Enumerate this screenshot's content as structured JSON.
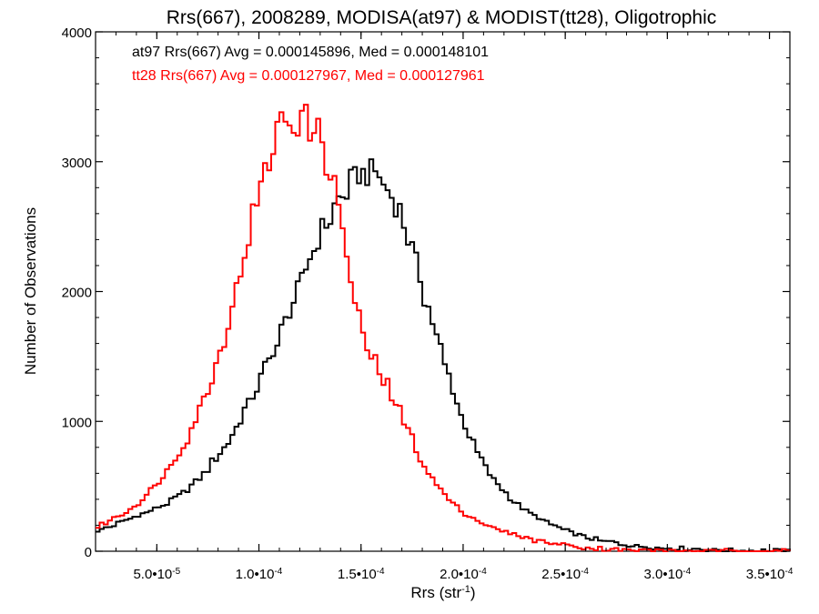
{
  "chart_data": {
    "type": "histogram",
    "title": "Rrs(667), 2008289, MODISA(at97) & MODIST(tt28), Oligotrophic",
    "xlabel": {
      "main": "Rrs (str",
      "sup": "-1",
      "close": ")"
    },
    "ylabel": "Number of Observations",
    "xlim": [
      2e-05,
      0.00036
    ],
    "ylim": [
      0,
      4000
    ],
    "x_ticks": [
      {
        "value": 5e-05,
        "mantissa": "5.0",
        "exponent": "-5"
      },
      {
        "value": 0.0001,
        "mantissa": "1.0",
        "exponent": "-4"
      },
      {
        "value": 0.00015,
        "mantissa": "1.5",
        "exponent": "-4"
      },
      {
        "value": 0.0002,
        "mantissa": "2.0",
        "exponent": "-4"
      },
      {
        "value": 0.00025,
        "mantissa": "2.5",
        "exponent": "-4"
      },
      {
        "value": 0.0003,
        "mantissa": "3.0",
        "exponent": "-4"
      },
      {
        "value": 0.00035,
        "mantissa": "3.5",
        "exponent": "-4"
      }
    ],
    "y_ticks": [
      0,
      1000,
      2000,
      3000,
      4000
    ],
    "grid": false,
    "annotations": [
      {
        "text": "at97 Rrs(667) Avg = 0.000145896, Med = 0.000148101",
        "color": "#000000"
      },
      {
        "text": "tt28 Rrs(667) Avg = 0.000127967, Med = 0.000127961",
        "color": "#ff0000"
      }
    ],
    "series": [
      {
        "color": "#000000",
        "bin_width": 2e-06,
        "x": [
          2e-05,
          2.5e-05,
          3e-05,
          3.5e-05,
          4e-05,
          4.5e-05,
          5e-05,
          5.5e-05,
          6e-05,
          6.5e-05,
          7e-05,
          7.5e-05,
          8e-05,
          8.5e-05,
          9e-05,
          9.5e-05,
          0.0001,
          0.000105,
          0.00011,
          0.000115,
          0.00012,
          0.000125,
          0.00013,
          0.000135,
          0.00014,
          0.000145,
          0.00015,
          0.000152,
          0.000155,
          0.000158,
          0.00016,
          0.000165,
          0.00017,
          0.000175,
          0.00018,
          0.000185,
          0.00019,
          0.000195,
          0.0002,
          0.000205,
          0.00021,
          0.000215,
          0.00022,
          0.000225,
          0.00023,
          0.00024,
          0.00025,
          0.00026,
          0.00027,
          0.00028,
          0.00029,
          0.0003,
          0.00031,
          0.00032,
          0.00033,
          0.00034,
          0.00035,
          0.00036
        ],
        "y": [
          150,
          180,
          210,
          240,
          270,
          300,
          330,
          370,
          420,
          480,
          550,
          640,
          740,
          850,
          990,
          1130,
          1290,
          1460,
          1650,
          1850,
          2060,
          2250,
          2430,
          2600,
          2750,
          2860,
          2920,
          2960,
          2900,
          2870,
          2840,
          2720,
          2550,
          2320,
          2050,
          1760,
          1490,
          1240,
          1000,
          820,
          670,
          550,
          460,
          380,
          320,
          230,
          160,
          110,
          75,
          50,
          35,
          25,
          18,
          12,
          8,
          5,
          3,
          2
        ]
      },
      {
        "color": "#ff0000",
        "bin_width": 2e-06,
        "x": [
          2e-05,
          2.5e-05,
          3e-05,
          3.5e-05,
          4e-05,
          4.5e-05,
          5e-05,
          5.5e-05,
          6e-05,
          6.5e-05,
          7e-05,
          7.5e-05,
          8e-05,
          8.5e-05,
          9e-05,
          9.5e-05,
          0.0001,
          0.000105,
          0.00011,
          0.000115,
          0.00012,
          0.000125,
          0.000128,
          0.00013,
          0.000135,
          0.00014,
          0.000145,
          0.00015,
          0.000155,
          0.00016,
          0.000165,
          0.00017,
          0.000175,
          0.00018,
          0.000185,
          0.00019,
          0.000195,
          0.0002,
          0.00021,
          0.00022,
          0.00023,
          0.00024,
          0.00025,
          0.00026,
          0.00027,
          0.00028,
          0.00029,
          0.0003,
          0.00032,
          0.00034,
          0.00036
        ],
        "y": [
          180,
          220,
          260,
          300,
          360,
          430,
          520,
          620,
          740,
          880,
          1050,
          1250,
          1480,
          1760,
          2080,
          2420,
          2760,
          3050,
          3260,
          3340,
          3330,
          3300,
          3250,
          3180,
          3000,
          2580,
          2080,
          1700,
          1490,
          1350,
          1200,
          1030,
          860,
          690,
          560,
          450,
          370,
          300,
          210,
          150,
          105,
          70,
          45,
          28,
          18,
          11,
          7,
          4,
          2,
          1,
          0
        ]
      }
    ]
  }
}
